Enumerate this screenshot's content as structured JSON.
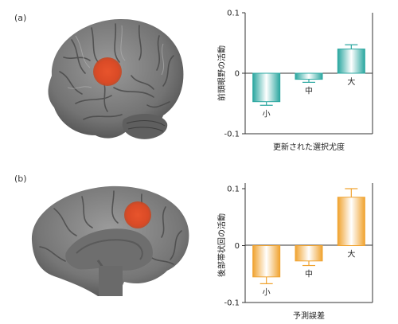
{
  "panels": [
    {
      "label": "(a)"
    },
    {
      "label": "(b)"
    }
  ],
  "chart_data": [
    {
      "type": "bar",
      "categories": [
        "小",
        "中",
        "大"
      ],
      "values": [
        -0.047,
        -0.01,
        0.04
      ],
      "errors": [
        0.006,
        0.005,
        0.007
      ],
      "ylabel": "前頭眼野の活動",
      "xlabel": "更新された選択尤度",
      "ylim": [
        -0.1,
        0.1
      ],
      "yticks": [
        0.1,
        0,
        -0.1
      ],
      "ytick_labels": [
        "0.1",
        "0",
        "-0.1"
      ],
      "color": "#2ba7a0",
      "grid": false
    },
    {
      "type": "bar",
      "categories": [
        "小",
        "中",
        "大"
      ],
      "values": [
        -0.055,
        -0.027,
        0.085
      ],
      "errors": [
        0.012,
        0.008,
        0.015
      ],
      "ylabel": "後部帯状回の活動",
      "xlabel": "予測誤差",
      "ylim": [
        -0.1,
        0.1
      ],
      "yticks": [
        0.1,
        0,
        -0.1
      ],
      "ytick_labels": [
        "0.1",
        "0",
        "-0.1"
      ],
      "color": "#f0a330",
      "grid": false
    }
  ]
}
